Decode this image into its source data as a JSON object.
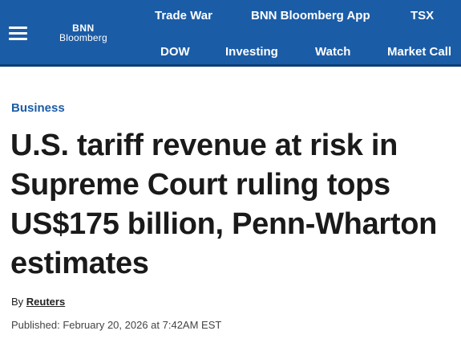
{
  "header": {
    "logo_line1": "BNN",
    "logo_line2": "Bloomberg",
    "background_color": "#1b5ca6",
    "menu_icon": "hamburger-menu-icon",
    "nav_row1": [
      "Trade War",
      "BNN Bloomberg App",
      "TSX"
    ],
    "nav_row2": [
      "DOW",
      "Investing",
      "Watch",
      "Market Call"
    ]
  },
  "article": {
    "section": "Business",
    "section_color": "#1b5ca6",
    "headline": "U.S. tariff revenue at risk in Supreme Court ruling tops US$175 billion, Penn-Wharton estimates",
    "byline_prefix": "By",
    "author": "Reuters",
    "published": "Published: February 20, 2026 at 7:42AM EST"
  }
}
